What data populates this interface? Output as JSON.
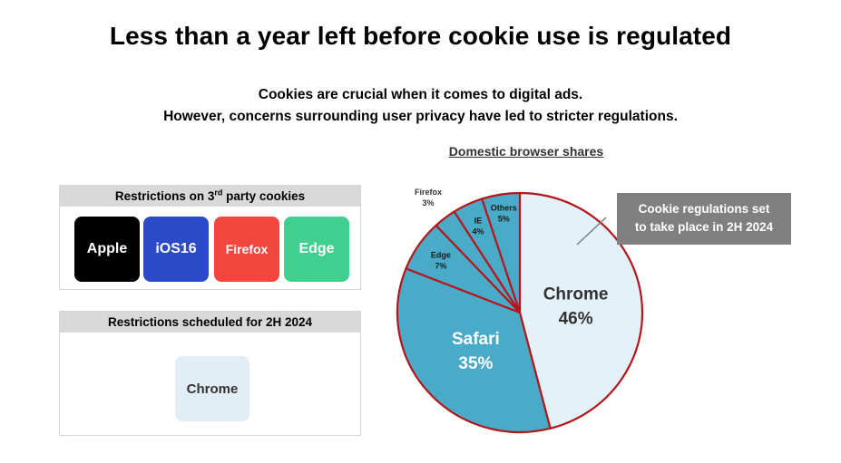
{
  "header": {
    "title": "Less than a year left before cookie use is regulated",
    "subtitle_line1": "Cookies are crucial when it comes to digital ads.",
    "subtitle_line2": "However, concerns surrounding user privacy have led to stricter regulations."
  },
  "restrictions_3p": {
    "heading_prefix": "Restrictions on 3",
    "heading_sup": "rd",
    "heading_suffix": " party cookies",
    "tiles": [
      "Apple",
      "iOS16",
      "Firefox",
      "Edge"
    ]
  },
  "restrictions_2h": {
    "heading": "Restrictions scheduled for 2H 2024",
    "tile": "Chrome"
  },
  "callout": {
    "line1": "Cookie regulations set",
    "line2": "to take place in 2H 2024"
  },
  "colors": {
    "chrome": "#e3f1f8",
    "other_slices": "#4aabc8",
    "slice_border": "#b4161c",
    "apple": "#000000",
    "ios16": "#2b4ac6",
    "firefox": "#f2463f",
    "edge": "#3fcf8e"
  },
  "chart_data": {
    "type": "pie",
    "title": "Domestic browser shares",
    "slices": [
      {
        "label": "Chrome",
        "value": 46,
        "display": "46%"
      },
      {
        "label": "Safari",
        "value": 35,
        "display": "35%"
      },
      {
        "label": "Edge",
        "value": 7,
        "display": "7%"
      },
      {
        "label": "Firefox",
        "value": 3,
        "display": "3%"
      },
      {
        "label": "IE",
        "value": 4,
        "display": "4%"
      },
      {
        "label": "Others",
        "value": 5,
        "display": "5%"
      }
    ]
  }
}
